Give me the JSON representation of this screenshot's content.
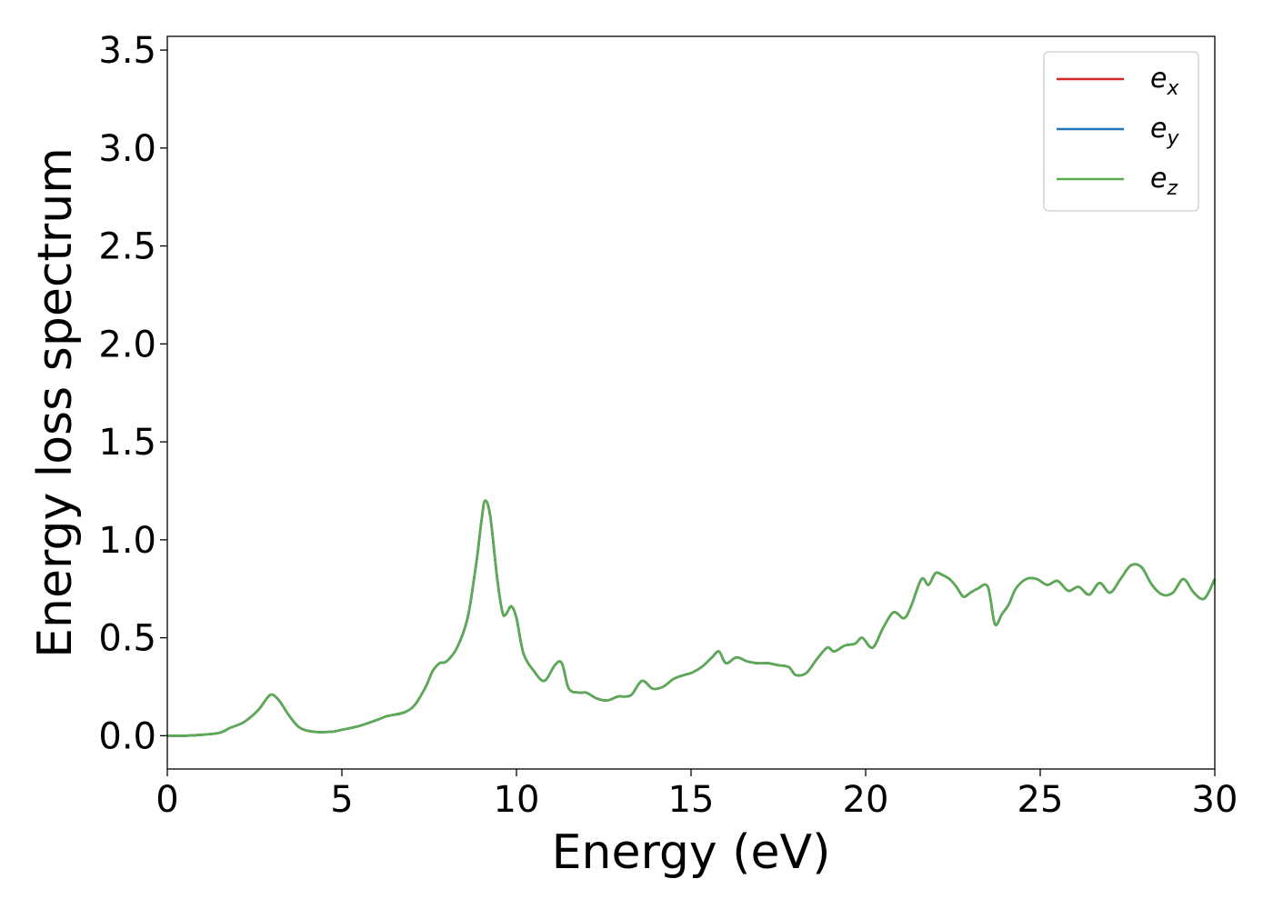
{
  "chart_data": {
    "type": "line",
    "title": "",
    "xlabel": "Energy (eV)",
    "ylabel": "Energy loss spectrum",
    "xlim": [
      0,
      30
    ],
    "ylim": [
      -0.17,
      3.57
    ],
    "xticks": [
      "0",
      "5",
      "10",
      "15",
      "20",
      "25",
      "30"
    ],
    "yticks": [
      "0.0",
      "0.5",
      "1.0",
      "1.5",
      "2.0",
      "2.5",
      "3.0",
      "3.5"
    ],
    "grid": false,
    "legend_position": "top-right",
    "series": [
      {
        "name": "e",
        "sub": "x",
        "color": "#d62728",
        "x": [
          0,
          0.5,
          1,
          1.5,
          1.8,
          2.2,
          2.6,
          2.85,
          3.0,
          3.2,
          3.5,
          3.8,
          4.2,
          4.7,
          5.0,
          5.5,
          6.0,
          6.3,
          6.8,
          7.1,
          7.4,
          7.6,
          7.8,
          8.0,
          8.3,
          8.6,
          8.8,
          8.9,
          9.0,
          9.1,
          9.25,
          9.45,
          9.6,
          9.7,
          9.85,
          10.0,
          10.2,
          10.5,
          10.8,
          11.1,
          11.3,
          11.5,
          11.8,
          12.0,
          12.3,
          12.6,
          12.9,
          13.1,
          13.3,
          13.6,
          13.9,
          14.2,
          14.5,
          14.8,
          15.0,
          15.3,
          15.6,
          15.8,
          16.0,
          16.3,
          16.6,
          16.9,
          17.2,
          17.5,
          17.8,
          18.0,
          18.3,
          18.6,
          18.9,
          19.1,
          19.4,
          19.7,
          19.9,
          20.2,
          20.5,
          20.8,
          21.1,
          21.3,
          21.6,
          21.8,
          22.0,
          22.2,
          22.4,
          22.6,
          22.8,
          23.0,
          23.2,
          23.5,
          23.7,
          23.9,
          24.1,
          24.3,
          24.6,
          24.9,
          25.2,
          25.5,
          25.8,
          26.1,
          26.4,
          26.7,
          27.0,
          27.3,
          27.6,
          27.9,
          28.2,
          28.5,
          28.8,
          29.1,
          29.4,
          29.7,
          30.0
        ],
        "y": [
          0.0,
          0.0,
          0.005,
          0.015,
          0.04,
          0.07,
          0.13,
          0.19,
          0.21,
          0.18,
          0.1,
          0.04,
          0.02,
          0.02,
          0.03,
          0.05,
          0.08,
          0.1,
          0.12,
          0.16,
          0.25,
          0.33,
          0.37,
          0.38,
          0.45,
          0.6,
          0.82,
          0.95,
          1.1,
          1.2,
          1.12,
          0.8,
          0.63,
          0.62,
          0.66,
          0.6,
          0.42,
          0.33,
          0.28,
          0.36,
          0.37,
          0.24,
          0.22,
          0.22,
          0.19,
          0.18,
          0.2,
          0.2,
          0.21,
          0.28,
          0.24,
          0.25,
          0.29,
          0.31,
          0.32,
          0.35,
          0.4,
          0.43,
          0.37,
          0.4,
          0.38,
          0.37,
          0.37,
          0.36,
          0.35,
          0.31,
          0.32,
          0.39,
          0.45,
          0.43,
          0.46,
          0.47,
          0.5,
          0.45,
          0.55,
          0.63,
          0.6,
          0.66,
          0.8,
          0.77,
          0.83,
          0.82,
          0.8,
          0.76,
          0.71,
          0.73,
          0.75,
          0.76,
          0.57,
          0.62,
          0.67,
          0.75,
          0.8,
          0.8,
          0.77,
          0.79,
          0.74,
          0.76,
          0.72,
          0.78,
          0.73,
          0.8,
          0.87,
          0.86,
          0.77,
          0.72,
          0.73,
          0.8,
          0.73,
          0.7,
          0.8
        ]
      },
      {
        "name": "e",
        "sub": "y",
        "color": "#1f77b4",
        "x": [
          0,
          0.5,
          1,
          1.5,
          1.8,
          2.2,
          2.6,
          2.85,
          3.0,
          3.2,
          3.5,
          3.8,
          4.2,
          4.7,
          5.0,
          5.5,
          6.0,
          6.3,
          6.8,
          7.1,
          7.4,
          7.6,
          7.8,
          8.0,
          8.3,
          8.6,
          8.8,
          8.9,
          9.0,
          9.1,
          9.25,
          9.45,
          9.6,
          9.7,
          9.85,
          10.0,
          10.2,
          10.5,
          10.8,
          11.1,
          11.3,
          11.5,
          11.8,
          12.0,
          12.3,
          12.6,
          12.9,
          13.1,
          13.3,
          13.6,
          13.9,
          14.2,
          14.5,
          14.8,
          15.0,
          15.3,
          15.6,
          15.8,
          16.0,
          16.3,
          16.6,
          16.9,
          17.2,
          17.5,
          17.8,
          18.0,
          18.3,
          18.6,
          18.9,
          19.1,
          19.4,
          19.7,
          19.9,
          20.2,
          20.5,
          20.8,
          21.1,
          21.3,
          21.6,
          21.8,
          22.0,
          22.2,
          22.4,
          22.6,
          22.8,
          23.0,
          23.2,
          23.5,
          23.7,
          23.9,
          24.1,
          24.3,
          24.6,
          24.9,
          25.2,
          25.5,
          25.8,
          26.1,
          26.4,
          26.7,
          27.0,
          27.3,
          27.6,
          27.9,
          28.2,
          28.5,
          28.8,
          29.1,
          29.4,
          29.7,
          30.0
        ],
        "y": [
          0.0,
          0.0,
          0.005,
          0.015,
          0.04,
          0.07,
          0.13,
          0.19,
          0.21,
          0.18,
          0.1,
          0.04,
          0.02,
          0.02,
          0.03,
          0.05,
          0.08,
          0.1,
          0.12,
          0.16,
          0.25,
          0.33,
          0.37,
          0.38,
          0.45,
          0.6,
          0.82,
          0.95,
          1.1,
          1.2,
          1.12,
          0.8,
          0.63,
          0.62,
          0.66,
          0.6,
          0.42,
          0.33,
          0.28,
          0.36,
          0.37,
          0.24,
          0.22,
          0.22,
          0.19,
          0.18,
          0.2,
          0.2,
          0.21,
          0.28,
          0.24,
          0.25,
          0.29,
          0.31,
          0.32,
          0.35,
          0.4,
          0.43,
          0.37,
          0.4,
          0.38,
          0.37,
          0.37,
          0.36,
          0.35,
          0.31,
          0.32,
          0.39,
          0.45,
          0.43,
          0.46,
          0.47,
          0.5,
          0.45,
          0.55,
          0.63,
          0.6,
          0.66,
          0.8,
          0.77,
          0.83,
          0.82,
          0.8,
          0.76,
          0.71,
          0.73,
          0.75,
          0.76,
          0.57,
          0.62,
          0.67,
          0.75,
          0.8,
          0.8,
          0.77,
          0.79,
          0.74,
          0.76,
          0.72,
          0.78,
          0.73,
          0.8,
          0.87,
          0.86,
          0.77,
          0.72,
          0.73,
          0.8,
          0.73,
          0.7,
          0.8
        ]
      },
      {
        "name": "e",
        "sub": "z",
        "color": "#5aab52",
        "x": [
          0,
          0.5,
          1,
          1.5,
          1.8,
          2.2,
          2.6,
          2.85,
          3.0,
          3.2,
          3.5,
          3.8,
          4.2,
          4.7,
          5.0,
          5.5,
          6.0,
          6.3,
          6.8,
          7.1,
          7.4,
          7.6,
          7.8,
          8.0,
          8.3,
          8.6,
          8.8,
          8.9,
          9.0,
          9.1,
          9.25,
          9.45,
          9.6,
          9.7,
          9.85,
          10.0,
          10.2,
          10.5,
          10.8,
          11.1,
          11.3,
          11.5,
          11.8,
          12.0,
          12.3,
          12.6,
          12.9,
          13.1,
          13.3,
          13.6,
          13.9,
          14.2,
          14.5,
          14.8,
          15.0,
          15.3,
          15.6,
          15.8,
          16.0,
          16.3,
          16.6,
          16.9,
          17.2,
          17.5,
          17.8,
          18.0,
          18.3,
          18.6,
          18.9,
          19.1,
          19.4,
          19.7,
          19.9,
          20.2,
          20.5,
          20.8,
          21.1,
          21.3,
          21.6,
          21.8,
          22.0,
          22.2,
          22.4,
          22.6,
          22.8,
          23.0,
          23.2,
          23.5,
          23.7,
          23.9,
          24.1,
          24.3,
          24.6,
          24.9,
          25.2,
          25.5,
          25.8,
          26.1,
          26.4,
          26.7,
          27.0,
          27.3,
          27.6,
          27.9,
          28.2,
          28.5,
          28.8,
          29.1,
          29.4,
          29.7,
          30.0
        ],
        "y": [
          0.0,
          0.0,
          0.005,
          0.015,
          0.04,
          0.07,
          0.13,
          0.19,
          0.21,
          0.18,
          0.1,
          0.04,
          0.02,
          0.02,
          0.03,
          0.05,
          0.08,
          0.1,
          0.12,
          0.16,
          0.25,
          0.33,
          0.37,
          0.38,
          0.45,
          0.6,
          0.82,
          0.95,
          1.1,
          1.2,
          1.12,
          0.8,
          0.63,
          0.62,
          0.66,
          0.6,
          0.42,
          0.33,
          0.28,
          0.36,
          0.37,
          0.24,
          0.22,
          0.22,
          0.19,
          0.18,
          0.2,
          0.2,
          0.21,
          0.28,
          0.24,
          0.25,
          0.29,
          0.31,
          0.32,
          0.35,
          0.4,
          0.43,
          0.37,
          0.4,
          0.38,
          0.37,
          0.37,
          0.36,
          0.35,
          0.31,
          0.32,
          0.39,
          0.45,
          0.43,
          0.46,
          0.47,
          0.5,
          0.45,
          0.55,
          0.63,
          0.6,
          0.66,
          0.8,
          0.77,
          0.83,
          0.82,
          0.8,
          0.76,
          0.71,
          0.73,
          0.75,
          0.76,
          0.57,
          0.62,
          0.67,
          0.75,
          0.8,
          0.8,
          0.77,
          0.79,
          0.74,
          0.76,
          0.72,
          0.78,
          0.73,
          0.8,
          0.87,
          0.86,
          0.77,
          0.72,
          0.73,
          0.8,
          0.73,
          0.7,
          0.8
        ]
      }
    ]
  }
}
